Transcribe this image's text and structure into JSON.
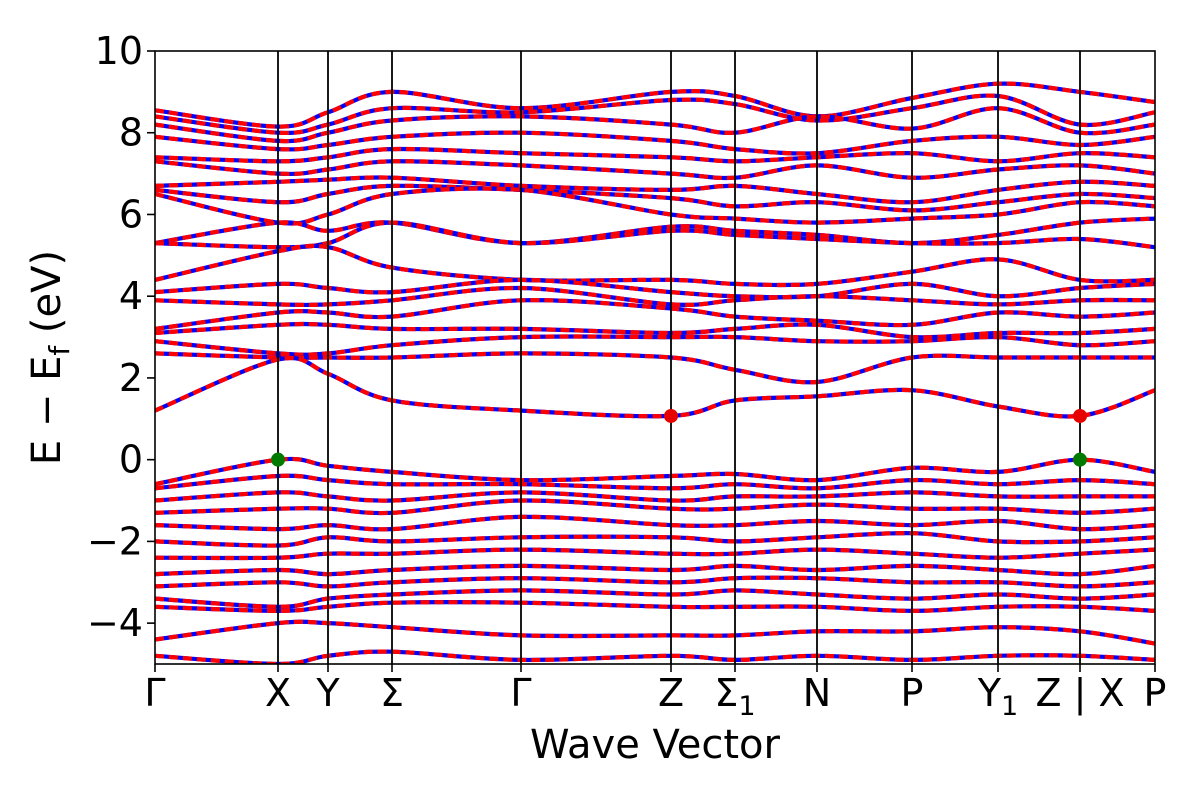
{
  "chart_data": {
    "type": "line",
    "title": "",
    "xlabel": "Wave Vector",
    "ylabel": {
      "base": "E − E",
      "sub": "f",
      "unit": " (eV)"
    },
    "ylim": [
      -5,
      10
    ],
    "yticks": [
      -4,
      -2,
      0,
      2,
      4,
      6,
      8,
      10
    ],
    "ytick_labels": [
      "−4",
      "−2",
      "0",
      "2",
      "4",
      "6",
      "8",
      "10"
    ],
    "kpath": [
      {
        "label": "Γ",
        "sub": "",
        "pos": 0.0
      },
      {
        "label": "X",
        "sub": "",
        "pos": 0.123
      },
      {
        "label": "Y",
        "sub": "",
        "pos": 0.173
      },
      {
        "label": "Σ",
        "sub": "",
        "pos": 0.237
      },
      {
        "label": "Γ",
        "sub": "",
        "pos": 0.366
      },
      {
        "label": "Z",
        "sub": "",
        "pos": 0.516
      },
      {
        "label": "Σ",
        "sub": "1",
        "pos": 0.58
      },
      {
        "label": "N",
        "sub": "",
        "pos": 0.662
      },
      {
        "label": "P",
        "sub": "",
        "pos": 0.757
      },
      {
        "label": "Y",
        "sub": "1",
        "pos": 0.843
      },
      {
        "label": "Z | X",
        "sub": "",
        "pos": 0.925
      },
      {
        "label": "P",
        "sub": "",
        "pos": 1.0
      }
    ],
    "vertical_lines": [
      0.123,
      0.173,
      0.237,
      0.366,
      0.516,
      0.58,
      0.662,
      0.757,
      0.843,
      0.925
    ],
    "grid": false,
    "legend": "none",
    "colors": {
      "band_up": "#ff0000",
      "band_down": "#0000ff",
      "cbm_marker": "#e60000",
      "vbm_marker": "#007a00",
      "kline": "#000000"
    },
    "markers": [
      {
        "name": "VBM",
        "x": 0.123,
        "y": 0.0,
        "color": "#007a00"
      },
      {
        "name": "VBM",
        "x": 0.925,
        "y": 0.0,
        "color": "#007a00"
      },
      {
        "name": "CBM",
        "x": 0.516,
        "y": 1.07,
        "color": "#e60000"
      },
      {
        "name": "CBM",
        "x": 0.925,
        "y": 1.07,
        "color": "#e60000"
      }
    ],
    "series": [
      {
        "x": [
          0,
          0.123,
          0.173,
          0.237,
          0.366,
          0.516,
          0.58,
          0.662,
          0.757,
          0.843,
          0.925,
          1.0
        ],
        "values": [
          8.55,
          8.15,
          8.5,
          9.0,
          8.6,
          9.0,
          8.9,
          8.4,
          8.85,
          9.2,
          9.0,
          8.75
        ]
      },
      {
        "x": [
          0,
          0.123,
          0.173,
          0.237,
          0.366,
          0.516,
          0.58,
          0.662,
          0.757,
          0.843,
          0.925,
          1.0
        ],
        "values": [
          8.4,
          8.0,
          8.2,
          8.6,
          8.5,
          8.8,
          8.7,
          8.3,
          8.6,
          8.9,
          8.2,
          8.5
        ]
      },
      {
        "x": [
          0,
          0.123,
          0.173,
          0.237,
          0.366,
          0.516,
          0.58,
          0.662,
          0.757,
          0.843,
          0.925,
          1.0
        ],
        "values": [
          8.2,
          7.8,
          8.0,
          8.3,
          8.4,
          8.2,
          8.0,
          8.4,
          8.1,
          8.6,
          8.0,
          8.2
        ]
      },
      {
        "x": [
          0,
          0.123,
          0.173,
          0.237,
          0.366,
          0.516,
          0.58,
          0.662,
          0.757,
          0.843,
          0.925,
          1.0
        ],
        "values": [
          7.9,
          7.6,
          7.7,
          7.9,
          8.0,
          7.8,
          7.6,
          7.5,
          7.8,
          7.9,
          7.7,
          7.9
        ]
      },
      {
        "x": [
          0,
          0.123,
          0.173,
          0.237,
          0.366,
          0.516,
          0.58,
          0.662,
          0.757,
          0.843,
          0.925,
          1.0
        ],
        "values": [
          7.4,
          7.3,
          7.4,
          7.6,
          7.5,
          7.4,
          7.3,
          7.4,
          7.5,
          7.3,
          7.5,
          7.4
        ]
      },
      {
        "x": [
          0,
          0.123,
          0.173,
          0.237,
          0.366,
          0.516,
          0.58,
          0.662,
          0.757,
          0.843,
          0.925,
          1.0
        ],
        "values": [
          7.3,
          7.0,
          7.1,
          7.3,
          7.2,
          7.0,
          6.9,
          7.2,
          6.9,
          7.1,
          7.2,
          7.0
        ]
      },
      {
        "x": [
          0,
          0.123,
          0.173,
          0.237,
          0.366,
          0.516,
          0.58,
          0.662,
          0.757,
          0.843,
          0.925,
          1.0
        ],
        "values": [
          6.7,
          6.8,
          6.85,
          6.9,
          6.7,
          6.6,
          6.7,
          6.5,
          6.3,
          6.6,
          6.8,
          6.7
        ]
      },
      {
        "x": [
          0,
          0.123,
          0.173,
          0.237,
          0.366,
          0.516,
          0.58,
          0.662,
          0.757,
          0.843,
          0.925,
          1.0
        ],
        "values": [
          6.6,
          6.3,
          6.5,
          6.7,
          6.6,
          6.4,
          6.2,
          6.3,
          6.1,
          6.3,
          6.5,
          6.4
        ]
      },
      {
        "x": [
          0,
          0.123,
          0.173,
          0.237,
          0.366,
          0.516,
          0.58,
          0.662,
          0.757,
          0.843,
          0.925,
          1.0
        ],
        "values": [
          6.5,
          5.8,
          6.0,
          6.5,
          6.6,
          6.0,
          5.9,
          5.8,
          5.9,
          6.0,
          6.3,
          6.2
        ]
      },
      {
        "x": [
          0,
          0.123,
          0.173,
          0.237,
          0.366,
          0.516,
          0.58,
          0.662,
          0.757,
          0.843,
          0.925,
          1.0
        ],
        "values": [
          5.3,
          5.8,
          5.6,
          5.8,
          5.3,
          5.7,
          5.6,
          5.5,
          5.3,
          5.5,
          5.8,
          5.9
        ]
      },
      {
        "x": [
          0,
          0.123,
          0.173,
          0.237,
          0.366,
          0.516,
          0.58,
          0.662,
          0.757,
          0.843,
          0.925,
          1.0
        ],
        "values": [
          5.3,
          5.2,
          5.3,
          5.8,
          5.3,
          5.6,
          5.5,
          5.4,
          5.3,
          5.3,
          5.4,
          5.2
        ]
      },
      {
        "x": [
          0,
          0.123,
          0.173,
          0.237,
          0.366,
          0.516,
          0.58,
          0.662,
          0.757,
          0.843,
          0.925,
          1.0
        ],
        "values": [
          4.4,
          5.1,
          5.2,
          4.7,
          4.4,
          4.4,
          4.3,
          4.3,
          4.6,
          4.9,
          4.4,
          4.4
        ]
      },
      {
        "x": [
          0,
          0.123,
          0.173,
          0.237,
          0.366,
          0.516,
          0.58,
          0.662,
          0.757,
          0.843,
          0.925,
          1.0
        ],
        "values": [
          4.1,
          4.3,
          4.2,
          4.1,
          4.4,
          4.1,
          4.0,
          4.0,
          4.3,
          4.0,
          4.2,
          4.3
        ]
      },
      {
        "x": [
          0,
          0.123,
          0.173,
          0.237,
          0.366,
          0.516,
          0.58,
          0.662,
          0.757,
          0.843,
          0.925,
          1.0
        ],
        "values": [
          3.9,
          3.8,
          3.8,
          3.9,
          4.2,
          3.8,
          3.9,
          4.0,
          3.9,
          3.8,
          3.9,
          3.9
        ]
      },
      {
        "x": [
          0,
          0.123,
          0.173,
          0.237,
          0.366,
          0.516,
          0.58,
          0.662,
          0.757,
          0.843,
          0.925,
          1.0
        ],
        "values": [
          3.2,
          3.6,
          3.6,
          3.5,
          3.9,
          3.7,
          3.5,
          3.4,
          3.3,
          3.6,
          3.5,
          3.6
        ]
      },
      {
        "x": [
          0,
          0.123,
          0.173,
          0.237,
          0.366,
          0.516,
          0.58,
          0.662,
          0.757,
          0.843,
          0.925,
          1.0
        ],
        "values": [
          3.1,
          3.3,
          3.3,
          3.2,
          3.2,
          3.1,
          3.2,
          3.3,
          3.0,
          3.1,
          3.1,
          3.2
        ]
      },
      {
        "x": [
          0,
          0.123,
          0.173,
          0.237,
          0.366,
          0.516,
          0.58,
          0.662,
          0.757,
          0.843,
          0.925,
          1.0
        ],
        "values": [
          2.9,
          2.6,
          2.6,
          2.8,
          3.0,
          3.0,
          3.0,
          2.9,
          2.9,
          3.0,
          2.8,
          2.9
        ]
      },
      {
        "x": [
          0,
          0.123,
          0.173,
          0.237,
          0.366,
          0.516,
          0.58,
          0.662,
          0.757,
          0.843,
          0.925,
          1.0
        ],
        "values": [
          2.6,
          2.5,
          2.5,
          2.5,
          2.6,
          2.5,
          2.2,
          1.9,
          2.5,
          2.5,
          2.5,
          2.5
        ]
      },
      {
        "x": [
          0,
          0.123,
          0.173,
          0.237,
          0.366,
          0.516,
          0.58,
          0.662,
          0.757,
          0.843,
          0.925,
          1.0
        ],
        "values": [
          1.2,
          2.45,
          2.1,
          1.45,
          1.2,
          1.07,
          1.45,
          1.55,
          1.7,
          1.3,
          1.07,
          1.7
        ]
      },
      {
        "x": [
          0,
          0.123,
          0.173,
          0.237,
          0.366,
          0.516,
          0.58,
          0.662,
          0.757,
          0.843,
          0.925,
          1.0
        ],
        "values": [
          -0.6,
          0.0,
          -0.15,
          -0.3,
          -0.5,
          -0.4,
          -0.35,
          -0.5,
          -0.2,
          -0.3,
          0.0,
          -0.3
        ]
      },
      {
        "x": [
          0,
          0.123,
          0.173,
          0.237,
          0.366,
          0.516,
          0.58,
          0.662,
          0.757,
          0.843,
          0.925,
          1.0
        ],
        "values": [
          -0.7,
          -0.4,
          -0.5,
          -0.6,
          -0.6,
          -0.7,
          -0.6,
          -0.7,
          -0.5,
          -0.6,
          -0.5,
          -0.6
        ]
      },
      {
        "x": [
          0,
          0.123,
          0.173,
          0.237,
          0.366,
          0.516,
          0.58,
          0.662,
          0.757,
          0.843,
          0.925,
          1.0
        ],
        "values": [
          -1.0,
          -0.8,
          -0.9,
          -1.0,
          -0.8,
          -1.0,
          -0.9,
          -0.9,
          -0.8,
          -0.9,
          -0.9,
          -0.9
        ]
      },
      {
        "x": [
          0,
          0.123,
          0.173,
          0.237,
          0.366,
          0.516,
          0.58,
          0.662,
          0.757,
          0.843,
          0.925,
          1.0
        ],
        "values": [
          -1.3,
          -1.2,
          -1.2,
          -1.3,
          -1.0,
          -1.2,
          -1.2,
          -1.1,
          -1.2,
          -1.2,
          -1.3,
          -1.2
        ]
      },
      {
        "x": [
          0,
          0.123,
          0.173,
          0.237,
          0.366,
          0.516,
          0.58,
          0.662,
          0.757,
          0.843,
          0.925,
          1.0
        ],
        "values": [
          -1.6,
          -1.7,
          -1.6,
          -1.7,
          -1.4,
          -1.6,
          -1.6,
          -1.5,
          -1.6,
          -1.5,
          -1.7,
          -1.6
        ]
      },
      {
        "x": [
          0,
          0.123,
          0.173,
          0.237,
          0.366,
          0.516,
          0.58,
          0.662,
          0.757,
          0.843,
          0.925,
          1.0
        ],
        "values": [
          -2.0,
          -2.1,
          -1.9,
          -2.0,
          -1.9,
          -1.9,
          -2.0,
          -1.9,
          -1.8,
          -2.0,
          -2.0,
          -1.9
        ]
      },
      {
        "x": [
          0,
          0.123,
          0.173,
          0.237,
          0.366,
          0.516,
          0.58,
          0.662,
          0.757,
          0.843,
          0.925,
          1.0
        ],
        "values": [
          -2.4,
          -2.4,
          -2.3,
          -2.3,
          -2.2,
          -2.3,
          -2.3,
          -2.2,
          -2.3,
          -2.4,
          -2.3,
          -2.2
        ]
      },
      {
        "x": [
          0,
          0.123,
          0.173,
          0.237,
          0.366,
          0.516,
          0.58,
          0.662,
          0.757,
          0.843,
          0.925,
          1.0
        ],
        "values": [
          -2.8,
          -2.7,
          -2.8,
          -2.7,
          -2.6,
          -2.7,
          -2.6,
          -2.7,
          -2.6,
          -2.7,
          -2.8,
          -2.6
        ]
      },
      {
        "x": [
          0,
          0.123,
          0.173,
          0.237,
          0.366,
          0.516,
          0.58,
          0.662,
          0.757,
          0.843,
          0.925,
          1.0
        ],
        "values": [
          -3.1,
          -3.0,
          -3.1,
          -3.0,
          -2.9,
          -3.0,
          -2.9,
          -2.9,
          -3.0,
          -3.0,
          -3.1,
          -3.0
        ]
      },
      {
        "x": [
          0,
          0.123,
          0.173,
          0.237,
          0.366,
          0.516,
          0.58,
          0.662,
          0.757,
          0.843,
          0.925,
          1.0
        ],
        "values": [
          -3.4,
          -3.6,
          -3.4,
          -3.3,
          -3.2,
          -3.3,
          -3.2,
          -3.3,
          -3.4,
          -3.3,
          -3.4,
          -3.3
        ]
      },
      {
        "x": [
          0,
          0.123,
          0.173,
          0.237,
          0.366,
          0.516,
          0.58,
          0.662,
          0.757,
          0.843,
          0.925,
          1.0
        ],
        "values": [
          -3.6,
          -3.7,
          -3.6,
          -3.5,
          -3.5,
          -3.6,
          -3.6,
          -3.6,
          -3.7,
          -3.6,
          -3.6,
          -3.7
        ]
      },
      {
        "x": [
          0,
          0.123,
          0.173,
          0.237,
          0.366,
          0.516,
          0.58,
          0.662,
          0.757,
          0.843,
          0.925,
          1.0
        ],
        "values": [
          -4.4,
          -4.0,
          -4.0,
          -4.1,
          -4.3,
          -4.3,
          -4.3,
          -4.2,
          -4.2,
          -4.1,
          -4.2,
          -4.5
        ]
      },
      {
        "x": [
          0,
          0.123,
          0.173,
          0.237,
          0.366,
          0.516,
          0.58,
          0.662,
          0.757,
          0.843,
          0.925,
          1.0
        ],
        "values": [
          -4.8,
          -5.0,
          -4.8,
          -4.7,
          -4.9,
          -4.8,
          -4.9,
          -4.8,
          -4.9,
          -4.8,
          -4.8,
          -4.9
        ]
      }
    ]
  }
}
